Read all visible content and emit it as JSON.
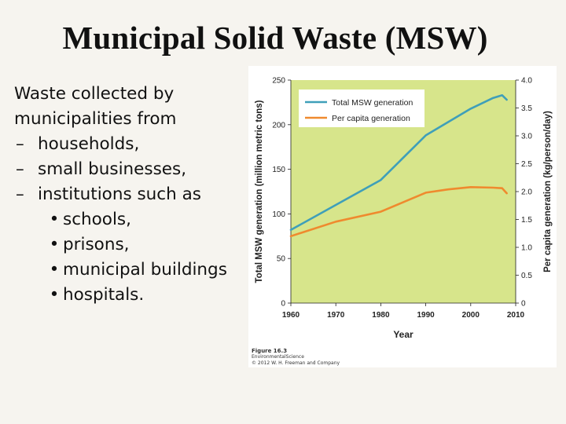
{
  "slide": {
    "title": "Municipal Solid Waste (MSW)",
    "intro_line1": "Waste collected by",
    "intro_line2": "municipalities from",
    "sub_items": [
      "households,",
      "small businesses,",
      "institutions such as"
    ],
    "sub_sub_items": [
      "schools,",
      "prisons,",
      "municipal buildings",
      "hospitals."
    ]
  },
  "caption": {
    "figure": "Figure 16.3",
    "book": "EnvironmentalScience",
    "credit": "© 2012 W. H. Freeman and Company"
  },
  "chart_data": {
    "type": "line",
    "title": "",
    "xlabel": "Year",
    "ylabel": "Total MSW generation (million metric tons)",
    "y2label": "Per capita generation (kg/person/day)",
    "xlim": [
      1960,
      2010
    ],
    "ylim": [
      0,
      250
    ],
    "y2lim": [
      0,
      4.0
    ],
    "xticks": [
      "1960",
      "1970",
      "1980",
      "1990",
      "2000",
      "2010"
    ],
    "yticks": [
      "0",
      "50",
      "100",
      "150",
      "200",
      "250"
    ],
    "y2ticks": [
      "0",
      "0.5",
      "1.0",
      "1.5",
      "2.0",
      "2.5",
      "3.0",
      "3.5",
      "4.0"
    ],
    "grid": false,
    "legend_position": "top-left",
    "background_color": "#d7e58b",
    "series": [
      {
        "name": "Total MSW generation",
        "axis": "left",
        "color": "#3f9fb9",
        "points": [
          [
            1960,
            82
          ],
          [
            1970,
            110
          ],
          [
            1980,
            138
          ],
          [
            1990,
            188
          ],
          [
            2000,
            218
          ],
          [
            2005,
            230
          ],
          [
            2007,
            233
          ],
          [
            2008,
            228
          ]
        ]
      },
      {
        "name": "Per capita generation",
        "axis": "right",
        "color": "#ef8a2e",
        "points": [
          [
            1960,
            1.2
          ],
          [
            1970,
            1.46
          ],
          [
            1980,
            1.64
          ],
          [
            1990,
            1.98
          ],
          [
            1995,
            2.04
          ],
          [
            2000,
            2.08
          ],
          [
            2005,
            2.07
          ],
          [
            2007,
            2.06
          ],
          [
            2008,
            1.97
          ]
        ]
      }
    ]
  }
}
